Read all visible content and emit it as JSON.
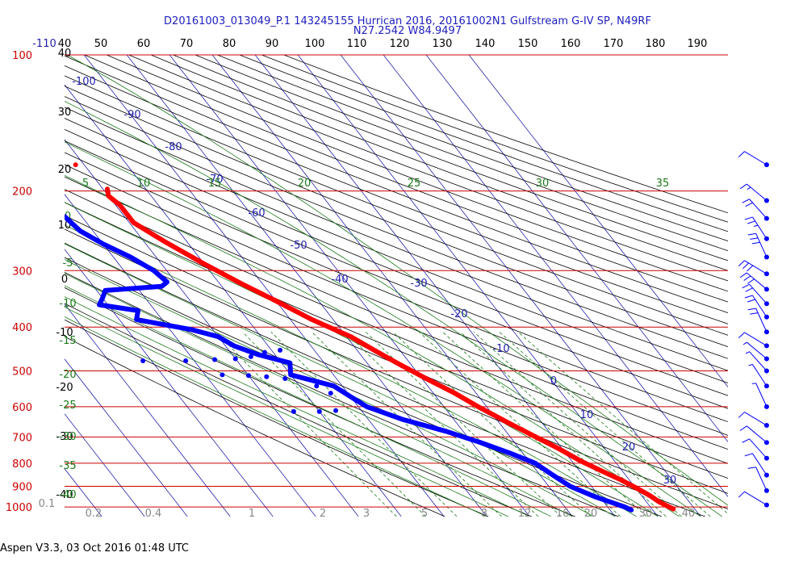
{
  "header": {
    "title_line1": "D20161003_013049_P.1 143245155 Hurrican 2016, 20161002N1 Gulfstream G-IV SP, N49RF",
    "title_line2": "N27.2542 W84.9497"
  },
  "footer": {
    "text": "Aspen V3.3, 03 Oct 2016  01:48 UTC"
  },
  "colors": {
    "isobar": "#cc0000",
    "temperature": "#ff0000",
    "dewpoint": "#0000ff",
    "isotherm": "#2222aa",
    "dry_adiabat": "#000000",
    "mixing_ratio": "#1a7a1a",
    "moist_adiabat": "#1a7a1a",
    "wind_barb": "#0000ff"
  },
  "chart_data": {
    "type": "skew-t log-p sounding",
    "pressure_levels": [
      {
        "p": 100,
        "label": "100"
      },
      {
        "p": 200,
        "label": "200"
      },
      {
        "p": 300,
        "label": "300"
      },
      {
        "p": 400,
        "label": "400"
      },
      {
        "p": 500,
        "label": "500"
      },
      {
        "p": 600,
        "label": "600"
      },
      {
        "p": 700,
        "label": "700"
      },
      {
        "p": 800,
        "label": "800"
      },
      {
        "p": 900,
        "label": "900"
      },
      {
        "p": 1000,
        "label": "1000"
      }
    ],
    "top_axis_labels": [
      "-110",
      "40",
      "50",
      "60",
      "70",
      "80",
      "90",
      "100",
      "110",
      "120",
      "130",
      "140",
      "150",
      "160",
      "170",
      "180",
      "190"
    ],
    "left_column_labels": [
      "40",
      "30",
      "20",
      "10",
      "0",
      "-10",
      "-20",
      "-30",
      "-40"
    ],
    "isotherm_labels": [
      "-100",
      "-90",
      "-80",
      "-70",
      "-60",
      "-50",
      "-40",
      "-30",
      "-20",
      "-10",
      "0",
      "10",
      "20",
      "30"
    ],
    "moist_adiabat_labels": [
      "5",
      "10",
      "15",
      "20",
      "25",
      "30",
      "35"
    ],
    "green_left_labels": [
      "0",
      "-5",
      "-10",
      "-15",
      "-20",
      "-25",
      "-30",
      "-35",
      "-40"
    ],
    "mixing_ratio_labels": [
      "0.1",
      "0.2",
      "0.4",
      "1",
      "2",
      "3",
      "5",
      "8",
      "12",
      "16",
      "20",
      "30",
      "40"
    ],
    "temperature_profile": [
      {
        "p": 198,
        "t": -49
      },
      {
        "p": 205,
        "t": -50
      },
      {
        "p": 215,
        "t": -49
      },
      {
        "p": 235,
        "t": -49
      },
      {
        "p": 260,
        "t": -45
      },
      {
        "p": 290,
        "t": -40
      },
      {
        "p": 320,
        "t": -35
      },
      {
        "p": 350,
        "t": -30
      },
      {
        "p": 385,
        "t": -25
      },
      {
        "p": 420,
        "t": -19
      },
      {
        "p": 450,
        "t": -16
      },
      {
        "p": 480,
        "t": -13
      },
      {
        "p": 520,
        "t": -9
      },
      {
        "p": 560,
        "t": -5
      },
      {
        "p": 600,
        "t": -2
      },
      {
        "p": 650,
        "t": 2
      },
      {
        "p": 700,
        "t": 6
      },
      {
        "p": 740,
        "t": 9
      },
      {
        "p": 790,
        "t": 12
      },
      {
        "p": 830,
        "t": 15
      },
      {
        "p": 870,
        "t": 18
      },
      {
        "p": 905,
        "t": 20
      },
      {
        "p": 945,
        "t": 22
      },
      {
        "p": 975,
        "t": 23
      },
      {
        "p": 1010,
        "t": 25
      }
    ],
    "temperature_isolated_point": {
      "p": 175,
      "t": -52
    },
    "dewpoint_profile": [
      {
        "p": 228,
        "t": -64
      },
      {
        "p": 245,
        "t": -63
      },
      {
        "p": 262,
        "t": -60
      },
      {
        "p": 280,
        "t": -56
      },
      {
        "p": 300,
        "t": -53
      },
      {
        "p": 318,
        "t": -52
      },
      {
        "p": 325,
        "t": -54
      },
      {
        "p": 332,
        "t": -68
      },
      {
        "p": 345,
        "t": -70
      },
      {
        "p": 357,
        "t": -72
      },
      {
        "p": 368,
        "t": -64
      },
      {
        "p": 385,
        "t": -66
      },
      {
        "p": 405,
        "t": -55
      },
      {
        "p": 420,
        "t": -50
      },
      {
        "p": 440,
        "t": -48
      },
      {
        "p": 460,
        "t": -44
      },
      {
        "p": 480,
        "t": -38
      },
      {
        "p": 510,
        "t": -40
      },
      {
        "p": 540,
        "t": -32
      },
      {
        "p": 570,
        "t": -30
      },
      {
        "p": 600,
        "t": -28
      },
      {
        "p": 640,
        "t": -22
      },
      {
        "p": 680,
        "t": -14
      },
      {
        "p": 720,
        "t": -8
      },
      {
        "p": 760,
        "t": -3
      },
      {
        "p": 800,
        "t": 1
      },
      {
        "p": 850,
        "t": 3
      },
      {
        "p": 900,
        "t": 5
      },
      {
        "p": 950,
        "t": 9
      },
      {
        "p": 1000,
        "t": 14
      },
      {
        "p": 1015,
        "t": 15
      }
    ],
    "dewpoint_scatter": [
      {
        "p": 475,
        "t": -72
      },
      {
        "p": 475,
        "t": -62
      },
      {
        "p": 472,
        "t": -55
      },
      {
        "p": 470,
        "t": -50
      },
      {
        "p": 465,
        "t": -46
      },
      {
        "p": 510,
        "t": -56
      },
      {
        "p": 512,
        "t": -50
      },
      {
        "p": 515,
        "t": -46
      },
      {
        "p": 520,
        "t": -42
      },
      {
        "p": 615,
        "t": -46
      },
      {
        "p": 615,
        "t": -40
      },
      {
        "p": 612,
        "t": -36
      },
      {
        "p": 455,
        "t": -42
      },
      {
        "p": 450,
        "t": -38
      },
      {
        "p": 560,
        "t": -34
      },
      {
        "p": 540,
        "t": -36
      }
    ],
    "wind_barbs": [
      {
        "p": 175,
        "barbs": "1 full"
      },
      {
        "p": 210,
        "barbs": "1 full + 1 half"
      },
      {
        "p": 230,
        "barbs": "2 full"
      },
      {
        "p": 255,
        "barbs": "2 full + 1 half"
      },
      {
        "p": 280,
        "barbs": "3 full"
      },
      {
        "p": 305,
        "barbs": "3 full"
      },
      {
        "p": 330,
        "barbs": "3 full"
      },
      {
        "p": 355,
        "barbs": "2 full"
      },
      {
        "p": 380,
        "barbs": "2 full"
      },
      {
        "p": 410,
        "barbs": "2 full"
      },
      {
        "p": 440,
        "barbs": "1 full"
      },
      {
        "p": 470,
        "barbs": "1 half"
      },
      {
        "p": 500,
        "barbs": "1 half"
      },
      {
        "p": 540,
        "barbs": "1 half"
      },
      {
        "p": 600,
        "barbs": "1 half"
      },
      {
        "p": 660,
        "barbs": "1 full"
      },
      {
        "p": 720,
        "barbs": "1 full"
      },
      {
        "p": 780,
        "barbs": "1 full"
      },
      {
        "p": 850,
        "barbs": "1 full"
      },
      {
        "p": 920,
        "barbs": "1 full"
      },
      {
        "p": 990,
        "barbs": "1 full"
      }
    ]
  }
}
